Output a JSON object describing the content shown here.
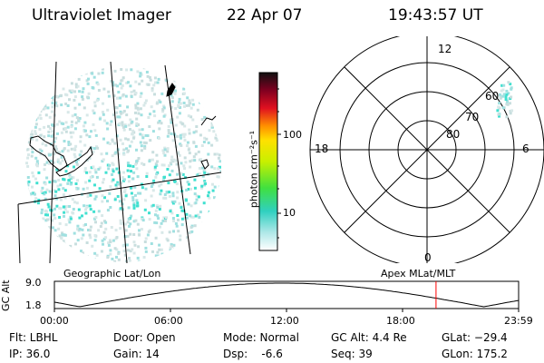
{
  "header": {
    "title": "Ultraviolet Imager",
    "date": "22 Apr 07",
    "time": "19:43:57 UT"
  },
  "colorbar": {
    "unit_label": "photon cm⁻²s⁻¹",
    "tick_100": "100",
    "tick_10": "10"
  },
  "polar_plot": {
    "mlt_labels": [
      "12",
      "18",
      "6",
      "0"
    ],
    "lat_labels": [
      "60",
      "70",
      "80"
    ]
  },
  "panel_labels": {
    "left": "Geographic Lat/Lon",
    "right": "Apex MLat/MLT"
  },
  "altitude_plot": {
    "ylabel": "GC Alt",
    "ymax": "9.0",
    "ymin": "1.8",
    "x_ticks": [
      "00:00",
      "06:00",
      "12:00",
      "18:00",
      "23:59"
    ],
    "current_marker_hours": 19.73
  },
  "info": {
    "flt": "Flt: LBHL",
    "ip": "IP: 36.0",
    "door": "Door: Open",
    "gain": "Gain: 14",
    "mode": "Mode: Normal",
    "dsp": "Dsp:    -6.6",
    "gcalt": "GC Alt: 4.4 Re",
    "seq": "Seq: 39",
    "glat": "GLat: −29.4",
    "glon": "GLon: 175.2"
  },
  "colors": {
    "marker": "#ff0000",
    "noise_light": "#c8dede",
    "noise_cyan": "#40e0d0"
  }
}
